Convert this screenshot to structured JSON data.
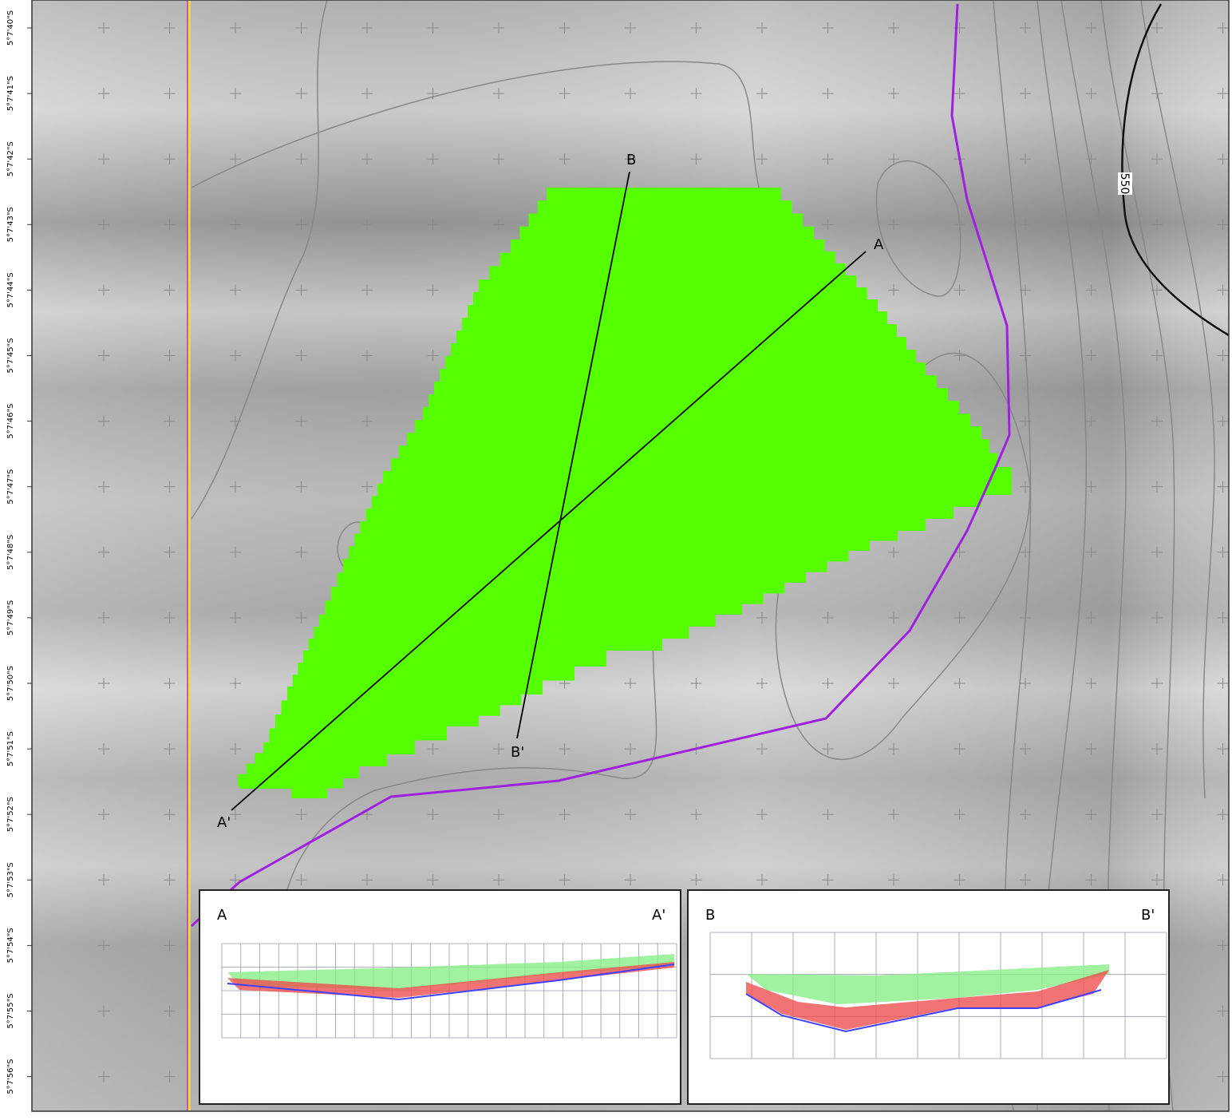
{
  "map": {
    "latitude_labels": [
      "5°7'40\"S",
      "5°7'41\"S",
      "5°7'42\"S",
      "5°7'43\"S",
      "5°7'44\"S",
      "5°7'45\"S",
      "5°7'46\"S",
      "5°7'47\"S",
      "5°7'48\"S",
      "5°7'49\"S",
      "5°7'50\"S",
      "5°7'51\"S",
      "5°7'52\"S",
      "5°7'53\"S",
      "5°7'54\"S",
      "5°7'55\"S",
      "5°7'56\"S"
    ],
    "section_lines": [
      {
        "start": "A",
        "end": "A'"
      },
      {
        "start": "B",
        "end": "B'"
      }
    ],
    "contour_label": "550",
    "insets": [
      {
        "left": "A",
        "right": "A'"
      },
      {
        "left": "B",
        "right": "B'"
      }
    ]
  }
}
